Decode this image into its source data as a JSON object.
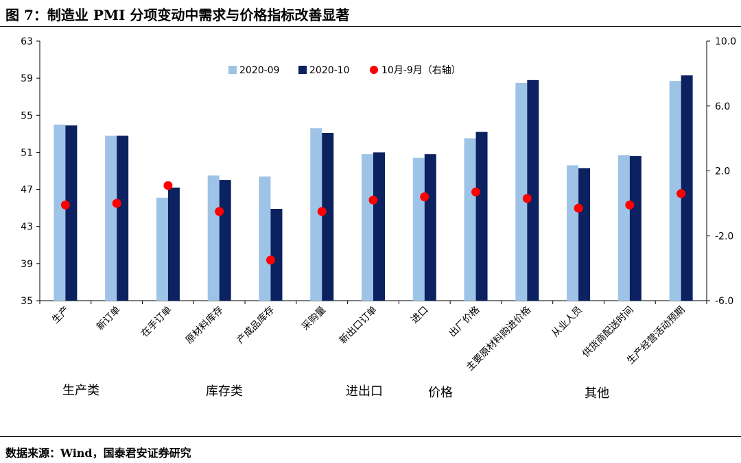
{
  "title": "图 7：制造业 PMI 分项变动中需求与价格指标改善显著",
  "source": "数据来源：Wind，国泰君安证券研究",
  "chart_data": {
    "type": "bar",
    "categories": [
      "生产",
      "新订单",
      "在手订单",
      "原材料库存",
      "产成品库存",
      "采购量",
      "新出口订单",
      "进口",
      "出厂价格",
      "主要原材料购进价格",
      "从业人员",
      "供货商配送时间",
      "生产经营活动预期"
    ],
    "series": [
      {
        "name": "2020-09",
        "type": "bar",
        "axis": "left",
        "color": "#9DC3E6",
        "values": [
          54.0,
          52.8,
          46.1,
          48.5,
          48.4,
          53.6,
          50.8,
          50.4,
          52.5,
          58.5,
          49.6,
          50.7,
          58.7
        ]
      },
      {
        "name": "2020-10",
        "type": "bar",
        "axis": "left",
        "color": "#0B2160",
        "values": [
          53.9,
          52.8,
          47.2,
          48.0,
          44.9,
          53.1,
          51.0,
          50.8,
          53.2,
          58.8,
          49.3,
          50.6,
          59.3
        ]
      },
      {
        "name": "10月-9月（右轴）",
        "type": "scatter",
        "axis": "right",
        "color": "#FF0000",
        "values": [
          -0.1,
          0.0,
          1.1,
          -0.5,
          -3.5,
          -0.5,
          0.2,
          0.4,
          0.7,
          0.3,
          -0.3,
          -0.1,
          0.6
        ]
      }
    ],
    "left_axis": {
      "min": 35,
      "max": 63,
      "ticks": [
        "35",
        "39",
        "43",
        "47",
        "51",
        "55",
        "59",
        "63"
      ]
    },
    "right_axis": {
      "min": -6,
      "max": 10,
      "ticks": [
        "-6.0",
        "-2.0",
        "2.0",
        "6.0",
        "10.0"
      ]
    },
    "legend_position": "top-center",
    "groups": [
      {
        "label": "生产类",
        "categories": [
          "生产",
          "新订单"
        ]
      },
      {
        "label": "库存类",
        "categories": [
          "在手订单",
          "原材料库存",
          "产成品库存"
        ]
      },
      {
        "label": "进出口",
        "categories": [
          "采购量",
          "新出口订单",
          "进口"
        ]
      },
      {
        "label": "价格",
        "categories": [
          "出厂价格",
          "主要原材料购进价格"
        ]
      },
      {
        "label": "其他",
        "categories": [
          "从业人员",
          "供货商配送时间",
          "生产经营活动预期"
        ]
      }
    ]
  }
}
